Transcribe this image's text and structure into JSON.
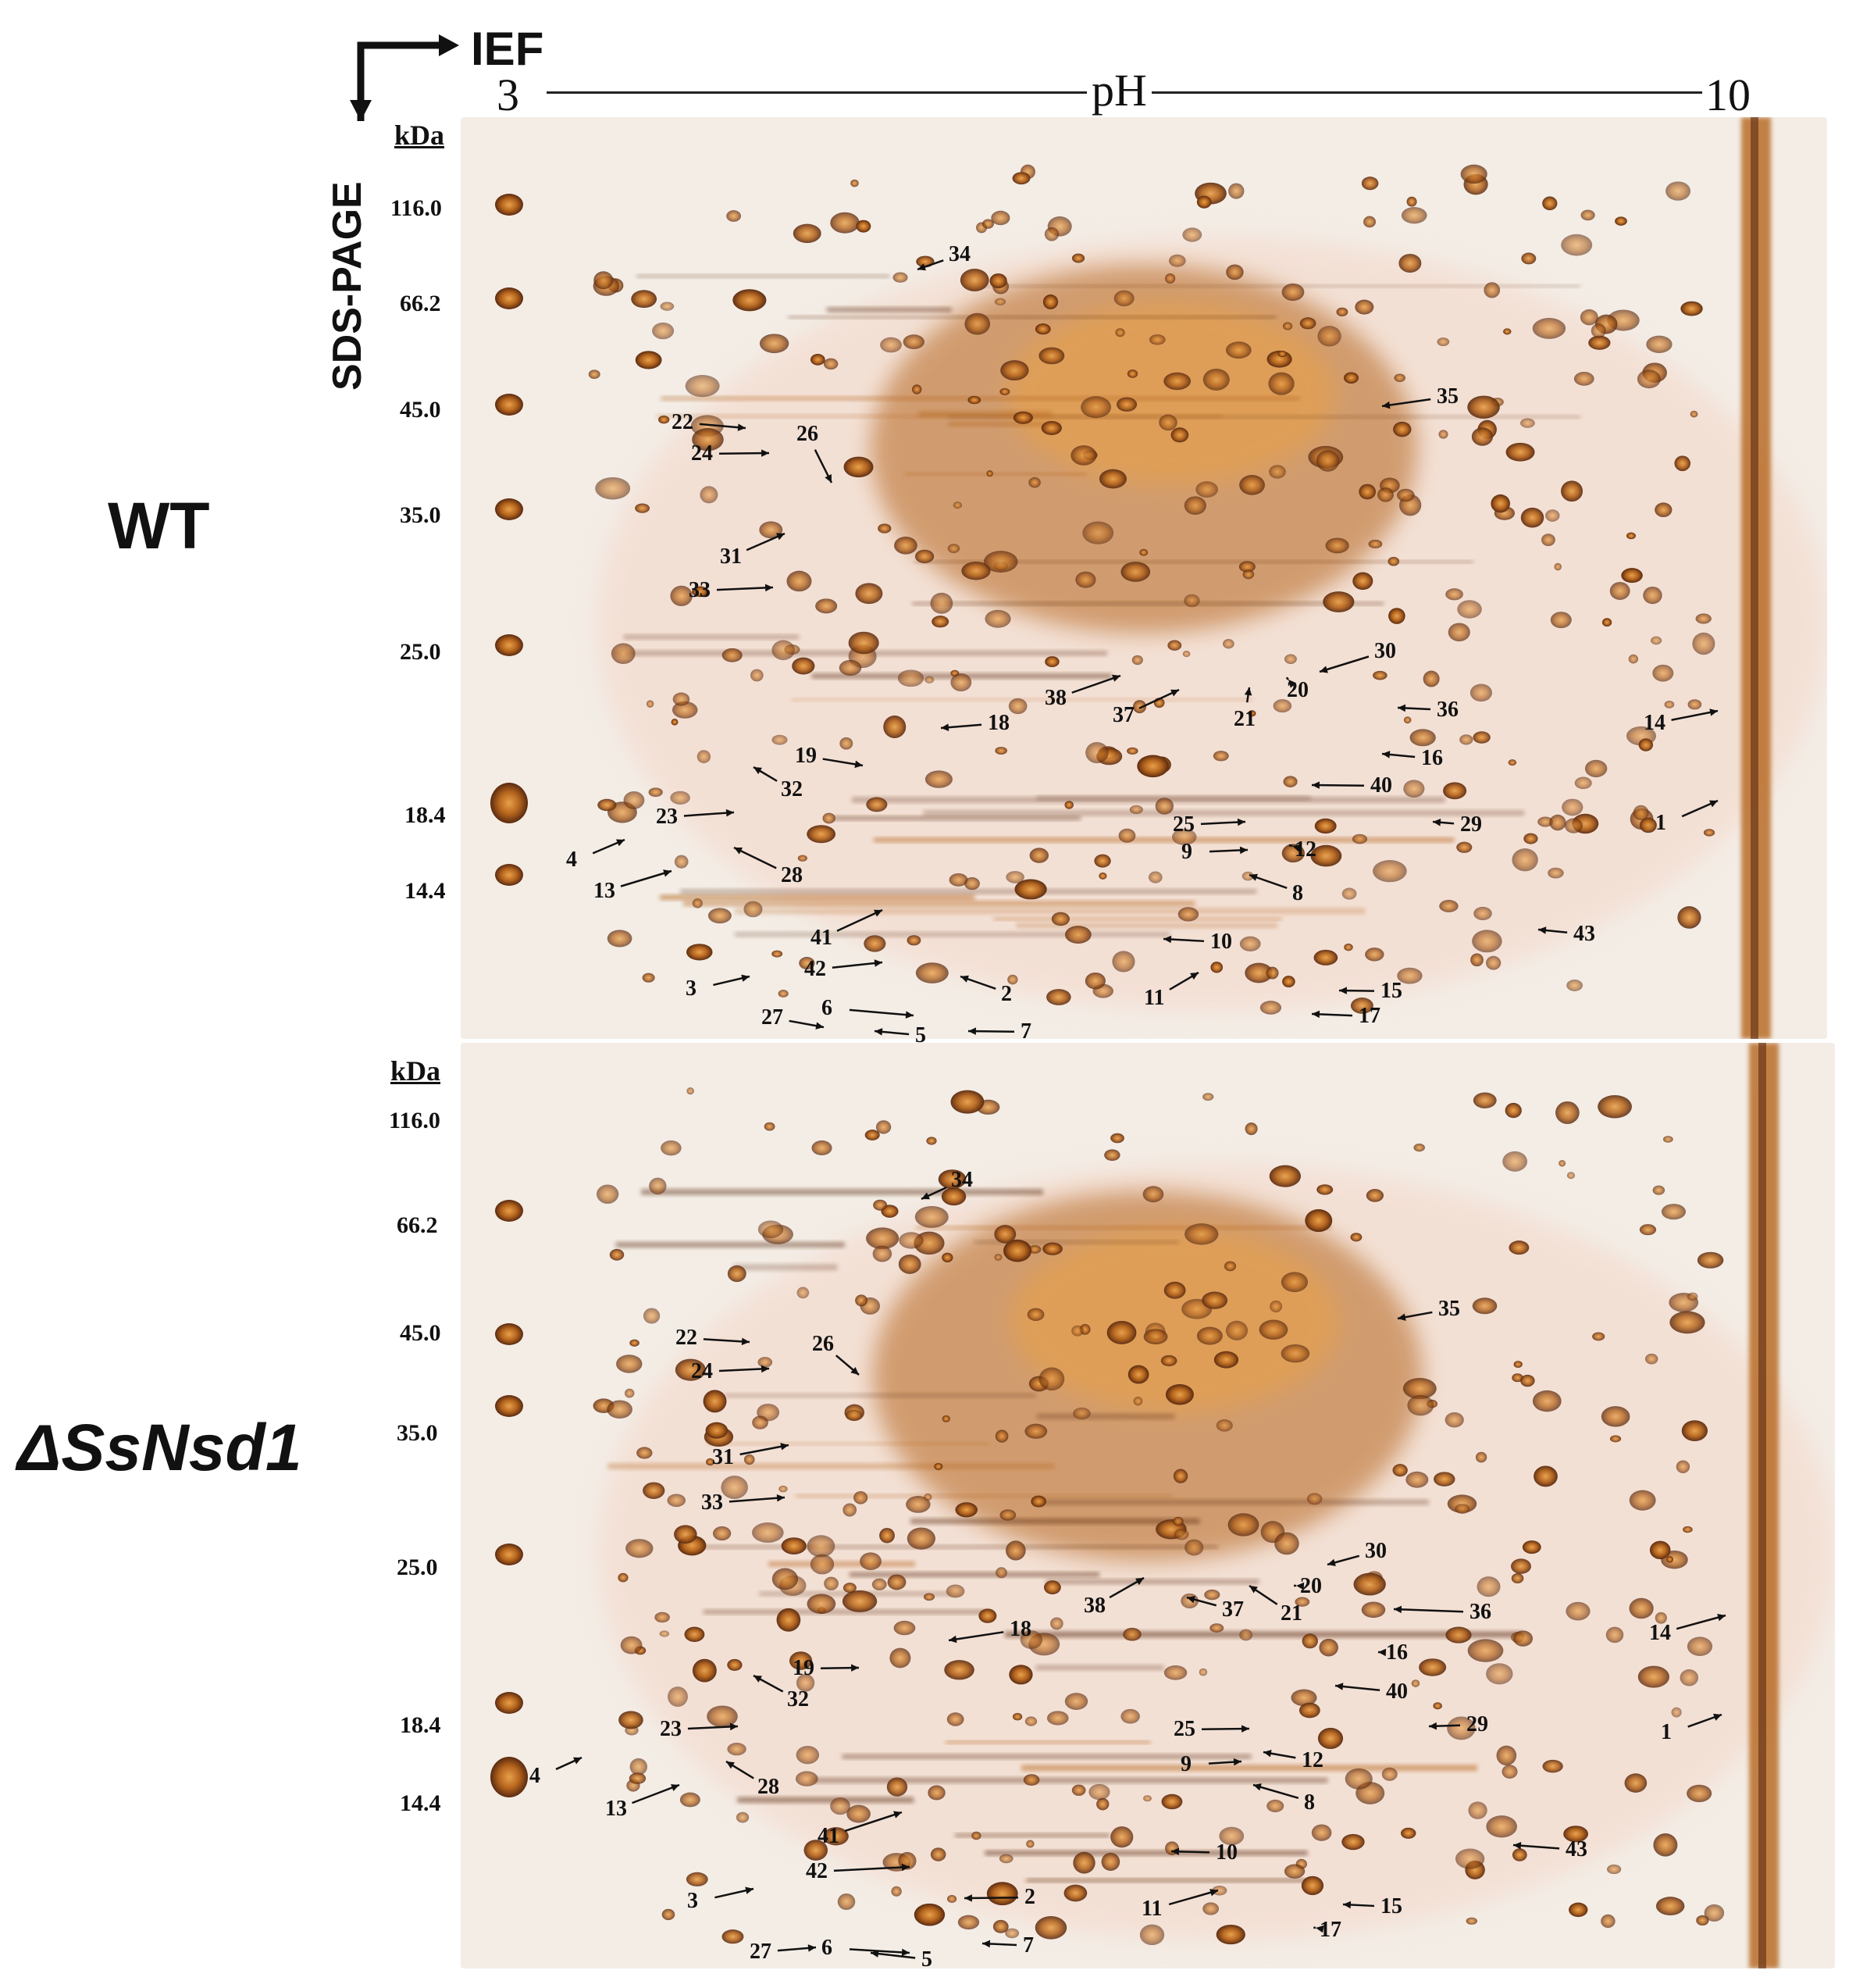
{
  "axis": {
    "ief": "IEF",
    "ph_label": "pH",
    "ph_min": "3",
    "ph_max": "10",
    "sds_page": "SDS-PAGE"
  },
  "panels": [
    {
      "id": "wt",
      "condition_label": "WT",
      "kda_header": "kDa",
      "markers": [
        "116.0",
        "66.2",
        "45.0",
        "35.0",
        "25.0",
        "18.4",
        "14.4"
      ],
      "spot_labels": [
        "34",
        "35",
        "22",
        "24",
        "26",
        "31",
        "33",
        "30",
        "38",
        "37",
        "20",
        "21",
        "36",
        "18",
        "14",
        "19",
        "32",
        "16",
        "40",
        "23",
        "25",
        "29",
        "1",
        "4",
        "28",
        "9",
        "12",
        "13",
        "8",
        "41",
        "10",
        "43",
        "42",
        "3",
        "2",
        "11",
        "15",
        "6",
        "27",
        "17",
        "5",
        "7"
      ]
    },
    {
      "id": "mutant",
      "condition_label": "ΔSsNsd1",
      "kda_header": "kDa",
      "markers": [
        "116.0",
        "66.2",
        "45.0",
        "35.0",
        "25.0",
        "18.4",
        "14.4"
      ],
      "spot_labels": [
        "34",
        "35",
        "22",
        "26",
        "24",
        "31",
        "33",
        "30",
        "20",
        "38",
        "37",
        "21",
        "36",
        "18",
        "14",
        "16",
        "19",
        "32",
        "40",
        "23",
        "25",
        "29",
        "1",
        "4",
        "28",
        "9",
        "12",
        "13",
        "8",
        "41",
        "10",
        "43",
        "42",
        "2",
        "3",
        "11",
        "15",
        "17",
        "6",
        "7",
        "27",
        "5"
      ]
    }
  ],
  "colors": {
    "stain_dark": "#5a2a10",
    "stain_mid": "#b5651d",
    "stain_light": "#e8a04a",
    "gel_background": "#f3ede6"
  }
}
